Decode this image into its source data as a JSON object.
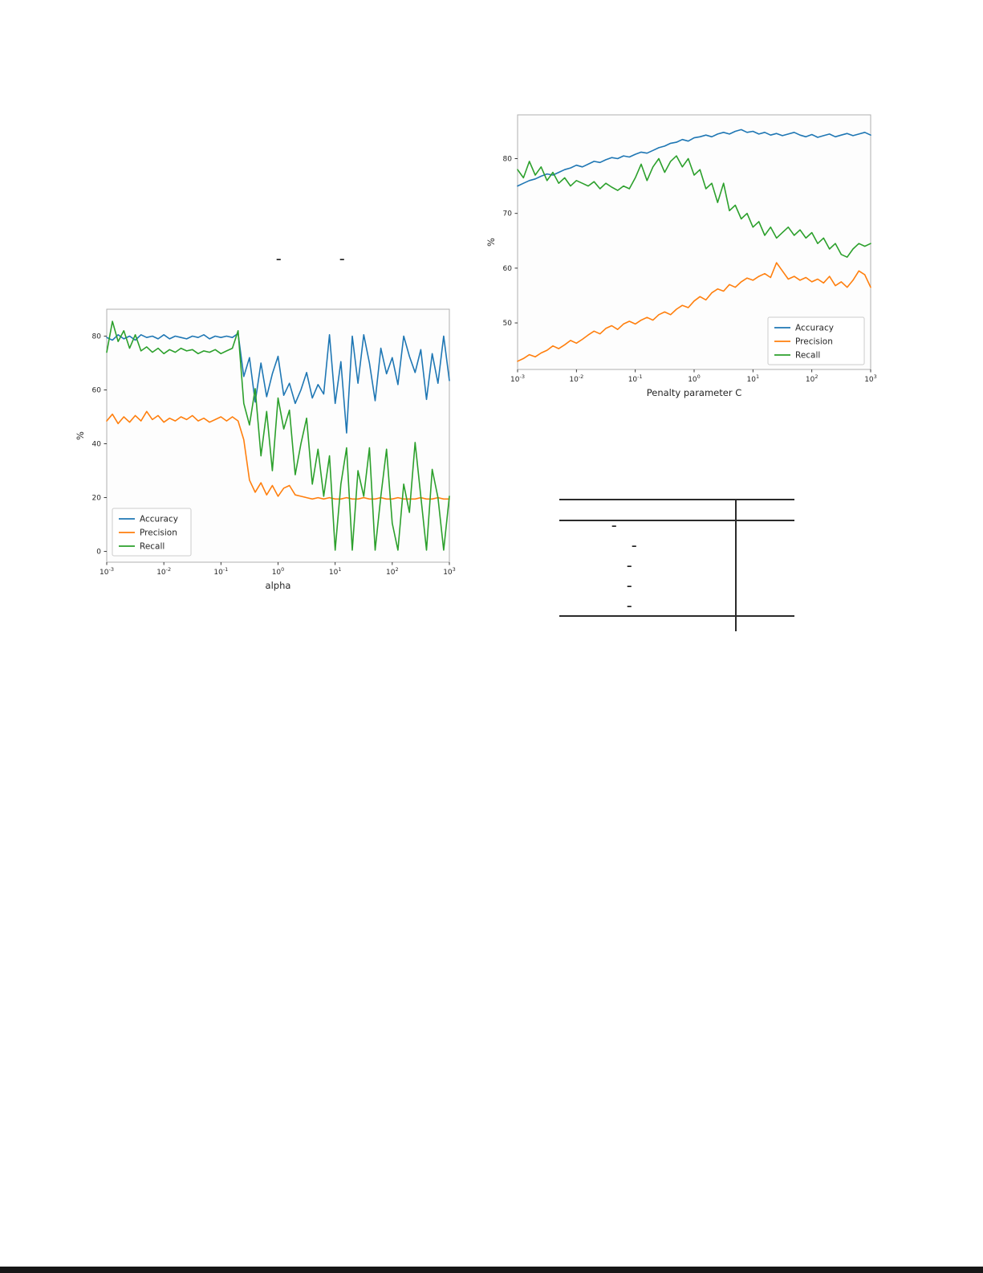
{
  "page": {
    "background": "#ffffff",
    "bottom_rule_color": "#171717"
  },
  "stray_marks": [
    {
      "text": "–"
    },
    {
      "text": "–"
    }
  ],
  "chart_data": [
    {
      "id": "chart-penalty",
      "type": "line",
      "title": "",
      "xlabel": "Penalty parameter C",
      "ylabel": "%",
      "x_scale": "log",
      "x_log_range": [
        -3,
        3
      ],
      "xticks": [
        "10^-3",
        "10^-2",
        "10^-1",
        "10^0",
        "10^1",
        "10^2",
        "10^3"
      ],
      "yticks": [
        50,
        60,
        70,
        80
      ],
      "ylim": [
        41.5,
        88
      ],
      "grid": false,
      "legend_position": "lower-right",
      "series": [
        {
          "name": "Accuracy",
          "color": "#1f77b4",
          "values": [
            75.0,
            75.5,
            76.0,
            76.3,
            76.8,
            77.2,
            77.0,
            77.5,
            78.0,
            78.3,
            78.8,
            78.5,
            79.0,
            79.5,
            79.3,
            79.8,
            80.2,
            80.0,
            80.5,
            80.3,
            80.8,
            81.2,
            81.0,
            81.5,
            82.0,
            82.3,
            82.8,
            83.0,
            83.5,
            83.2,
            83.8,
            84.0,
            84.3,
            84.0,
            84.5,
            84.8,
            84.5,
            85.0,
            85.3,
            84.8,
            85.0,
            84.5,
            84.8,
            84.3,
            84.6,
            84.2,
            84.5,
            84.8,
            84.3,
            84.0,
            84.4,
            83.9,
            84.2,
            84.5,
            84.0,
            84.3,
            84.6,
            84.2,
            84.5,
            84.8,
            84.3
          ]
        },
        {
          "name": "Precision",
          "color": "#ff7f0e",
          "values": [
            43.0,
            43.5,
            44.2,
            43.8,
            44.5,
            45.0,
            45.8,
            45.3,
            46.0,
            46.8,
            46.3,
            47.0,
            47.8,
            48.5,
            48.0,
            49.0,
            49.5,
            48.8,
            49.8,
            50.3,
            49.8,
            50.5,
            51.0,
            50.5,
            51.5,
            52.0,
            51.5,
            52.5,
            53.2,
            52.8,
            54.0,
            54.8,
            54.2,
            55.5,
            56.2,
            55.8,
            57.0,
            56.5,
            57.5,
            58.2,
            57.8,
            58.5,
            59.0,
            58.3,
            61.0,
            59.5,
            58.0,
            58.5,
            57.8,
            58.3,
            57.5,
            58.0,
            57.3,
            58.5,
            56.8,
            57.5,
            56.5,
            57.8,
            59.5,
            58.8,
            56.5
          ]
        },
        {
          "name": "Recall",
          "color": "#2ca02c",
          "values": [
            78.0,
            76.5,
            79.5,
            77.0,
            78.5,
            76.0,
            77.5,
            75.5,
            76.5,
            75.0,
            76.0,
            75.5,
            75.0,
            75.8,
            74.5,
            75.5,
            74.8,
            74.2,
            75.0,
            74.5,
            76.5,
            79.0,
            76.0,
            78.5,
            80.0,
            77.5,
            79.5,
            80.5,
            78.5,
            80.0,
            77.0,
            78.0,
            74.5,
            75.5,
            72.0,
            75.5,
            70.5,
            71.5,
            69.0,
            70.0,
            67.5,
            68.5,
            66.0,
            67.5,
            65.5,
            66.5,
            67.5,
            66.0,
            67.0,
            65.5,
            66.5,
            64.5,
            65.5,
            63.5,
            64.5,
            62.5,
            62.0,
            63.5,
            64.5,
            64.0,
            64.5
          ]
        }
      ]
    },
    {
      "id": "chart-alpha",
      "type": "line",
      "title": "",
      "xlabel": "alpha",
      "ylabel": "%",
      "x_scale": "log",
      "x_log_range": [
        -3,
        3
      ],
      "xticks": [
        "10^-3",
        "10^-2",
        "10^-1",
        "10^0",
        "10^1",
        "10^2",
        "10^3"
      ],
      "yticks": [
        0,
        20,
        40,
        60,
        80
      ],
      "ylim": [
        -4,
        90
      ],
      "grid": false,
      "legend_position": "lower-left",
      "series": [
        {
          "name": "Accuracy",
          "color": "#1f77b4",
          "values": [
            79.5,
            78.5,
            80.5,
            79.0,
            80.0,
            78.5,
            80.5,
            79.5,
            80.0,
            79.0,
            80.5,
            79.0,
            80.0,
            79.5,
            79.0,
            80.0,
            79.5,
            80.5,
            79.0,
            80.0,
            79.5,
            80.0,
            79.5,
            81.0,
            65.0,
            72.0,
            55.5,
            70.0,
            57.5,
            66.0,
            72.5,
            58.0,
            62.5,
            55.0,
            60.0,
            66.5,
            57.0,
            62.0,
            58.5,
            80.5,
            55.0,
            70.5,
            44.0,
            80.0,
            62.5,
            80.5,
            70.0,
            56.0,
            75.5,
            66.0,
            72.0,
            62.0,
            80.0,
            72.5,
            66.5,
            75.0,
            56.5,
            73.5,
            62.5,
            80.0,
            63.5
          ]
        },
        {
          "name": "Precision",
          "color": "#ff7f0e",
          "values": [
            48.5,
            51.0,
            47.5,
            50.0,
            48.0,
            50.5,
            48.5,
            52.0,
            49.0,
            50.5,
            48.0,
            49.5,
            48.5,
            50.0,
            49.0,
            50.5,
            48.5,
            49.5,
            48.0,
            49.0,
            50.0,
            48.5,
            50.0,
            48.5,
            41.5,
            26.5,
            22.0,
            25.5,
            21.0,
            24.5,
            20.5,
            23.5,
            24.5,
            21.0,
            20.5,
            20.0,
            19.5,
            20.0,
            19.5,
            20.0,
            19.5,
            19.5,
            20.0,
            19.5,
            19.5,
            20.0,
            19.5,
            19.5,
            20.0,
            19.5,
            19.5,
            20.0,
            19.5,
            19.5,
            19.5,
            20.0,
            19.5,
            19.5,
            20.0,
            19.5,
            19.5
          ]
        },
        {
          "name": "Recall",
          "color": "#2ca02c",
          "values": [
            74.0,
            85.5,
            78.0,
            82.0,
            75.5,
            80.5,
            74.5,
            76.0,
            74.0,
            75.5,
            73.5,
            75.0,
            74.0,
            75.5,
            74.5,
            75.0,
            73.5,
            74.5,
            74.0,
            75.0,
            73.5,
            74.5,
            75.5,
            82.0,
            55.0,
            47.0,
            60.5,
            35.5,
            52.0,
            30.0,
            57.0,
            45.5,
            52.5,
            28.5,
            40.0,
            49.5,
            25.0,
            38.0,
            20.5,
            35.5,
            0.5,
            25.0,
            38.5,
            0.5,
            30.0,
            20.5,
            38.5,
            0.5,
            20.5,
            38.0,
            10.5,
            0.5,
            25.0,
            14.5,
            40.5,
            20.5,
            0.5,
            30.5,
            20.0,
            0.5,
            20.5
          ]
        }
      ]
    }
  ],
  "table": {
    "rows": [
      {
        "text": "–"
      },
      {
        "text": "–"
      },
      {
        "text": "–"
      },
      {
        "text": "–"
      },
      {
        "text": "–"
      }
    ]
  }
}
